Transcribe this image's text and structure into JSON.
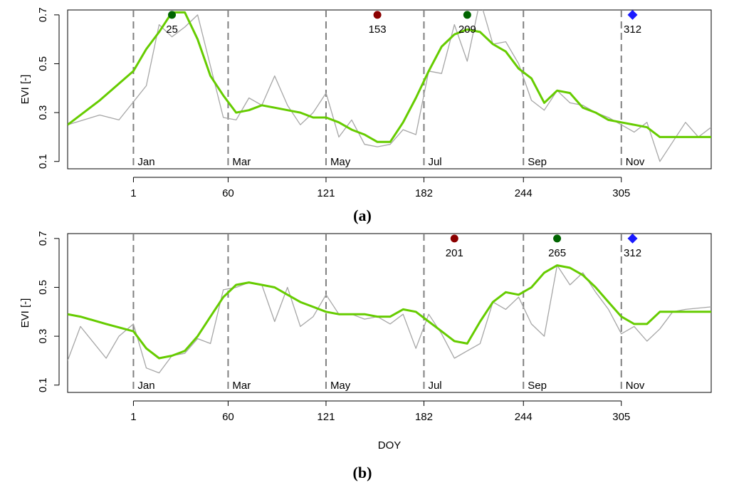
{
  "chart_data": [
    {
      "panel": "(a)",
      "type": "line",
      "xlabel": "",
      "ylabel": "EVI [-]",
      "xlim": [
        -40,
        361
      ],
      "ylim": [
        0.07,
        0.72
      ],
      "yticks": [
        "0.1",
        "0.3",
        "0.5",
        "0.7"
      ],
      "xticks": [
        "1",
        "60",
        "121",
        "182",
        "244",
        "305"
      ],
      "months": [
        {
          "doy": 1,
          "label": "Jan"
        },
        {
          "doy": 60,
          "label": "Mar"
        },
        {
          "doy": 121,
          "label": "May"
        },
        {
          "doy": 182,
          "label": "Jul"
        },
        {
          "doy": 244,
          "label": "Sep"
        },
        {
          "doy": 305,
          "label": "Nov"
        }
      ],
      "series": [
        {
          "color": "#a6a6a6",
          "x": [
            -40,
            -20,
            -8,
            9,
            17,
            25,
            33,
            41,
            57,
            65,
            73,
            81,
            89,
            97,
            105,
            113,
            121,
            129,
            137,
            145,
            153,
            161,
            169,
            177,
            185,
            193,
            201,
            209,
            217,
            225,
            233,
            241,
            249,
            257,
            265,
            273,
            281,
            289,
            297,
            305,
            313,
            321,
            329,
            337,
            345,
            353,
            361
          ],
          "y": [
            0.25,
            0.29,
            0.27,
            0.41,
            0.66,
            0.61,
            0.65,
            0.7,
            0.28,
            0.27,
            0.36,
            0.33,
            0.45,
            0.33,
            0.25,
            0.3,
            0.38,
            0.2,
            0.27,
            0.17,
            0.16,
            0.17,
            0.23,
            0.21,
            0.47,
            0.46,
            0.66,
            0.51,
            0.76,
            0.58,
            0.59,
            0.5,
            0.35,
            0.31,
            0.39,
            0.34,
            0.33,
            0.3,
            0.28,
            0.25,
            0.22,
            0.26,
            0.1,
            0.18,
            0.26,
            0.2,
            0.24
          ]
        },
        {
          "color": "#66cc00",
          "x": [
            -40,
            -20,
            1,
            9,
            17,
            25,
            33,
            41,
            49,
            57,
            65,
            73,
            81,
            89,
            97,
            105,
            113,
            121,
            129,
            137,
            145,
            153,
            161,
            169,
            177,
            185,
            193,
            201,
            209,
            217,
            225,
            233,
            241,
            249,
            257,
            265,
            273,
            281,
            289,
            297,
            305,
            313,
            321,
            329,
            337,
            345,
            361
          ],
          "y": [
            0.25,
            0.35,
            0.47,
            0.56,
            0.63,
            0.71,
            0.71,
            0.6,
            0.45,
            0.37,
            0.3,
            0.31,
            0.33,
            0.32,
            0.31,
            0.3,
            0.28,
            0.28,
            0.26,
            0.23,
            0.21,
            0.18,
            0.18,
            0.26,
            0.36,
            0.47,
            0.57,
            0.62,
            0.64,
            0.63,
            0.58,
            0.55,
            0.48,
            0.44,
            0.34,
            0.39,
            0.38,
            0.32,
            0.3,
            0.27,
            0.26,
            0.25,
            0.24,
            0.2,
            0.2,
            0.2,
            0.2
          ]
        }
      ],
      "markers": [
        {
          "doy": 25,
          "y": 0.7,
          "shape": "circle",
          "color": "#006400",
          "label": "25"
        },
        {
          "doy": 153,
          "y": 0.7,
          "shape": "circle",
          "color": "#8b0000",
          "label": "153"
        },
        {
          "doy": 209,
          "y": 0.7,
          "shape": "circle",
          "color": "#006400",
          "label": "209"
        },
        {
          "doy": 312,
          "y": 0.7,
          "shape": "diamond",
          "color": "#1a1aff",
          "label": "312"
        }
      ]
    },
    {
      "panel": "(b)",
      "type": "line",
      "xlabel": "DOY",
      "ylabel": "EVI [-]",
      "xlim": [
        -40,
        361
      ],
      "ylim": [
        0.07,
        0.72
      ],
      "yticks": [
        "0.1",
        "0.3",
        "0.5",
        "0.7"
      ],
      "xticks": [
        "1",
        "60",
        "121",
        "182",
        "244",
        "305"
      ],
      "months": [
        {
          "doy": 1,
          "label": "Jan"
        },
        {
          "doy": 60,
          "label": "Mar"
        },
        {
          "doy": 121,
          "label": "May"
        },
        {
          "doy": 182,
          "label": "Jul"
        },
        {
          "doy": 244,
          "label": "Sep"
        },
        {
          "doy": 305,
          "label": "Nov"
        }
      ],
      "series": [
        {
          "color": "#a6a6a6",
          "x": [
            -40,
            -32,
            -16,
            -8,
            1,
            9,
            17,
            25,
            33,
            41,
            49,
            57,
            65,
            73,
            81,
            89,
            97,
            105,
            113,
            121,
            129,
            137,
            145,
            153,
            161,
            169,
            177,
            185,
            193,
            201,
            209,
            217,
            225,
            233,
            241,
            249,
            257,
            265,
            273,
            281,
            289,
            297,
            305,
            313,
            321,
            329,
            337,
            345,
            361
          ],
          "y": [
            0.2,
            0.34,
            0.21,
            0.3,
            0.35,
            0.17,
            0.15,
            0.22,
            0.23,
            0.29,
            0.27,
            0.49,
            0.5,
            0.52,
            0.51,
            0.36,
            0.5,
            0.34,
            0.38,
            0.47,
            0.39,
            0.39,
            0.37,
            0.38,
            0.35,
            0.39,
            0.25,
            0.39,
            0.31,
            0.21,
            0.24,
            0.27,
            0.44,
            0.41,
            0.46,
            0.35,
            0.3,
            0.59,
            0.51,
            0.56,
            0.48,
            0.41,
            0.31,
            0.34,
            0.28,
            0.33,
            0.4,
            0.41,
            0.42
          ]
        },
        {
          "color": "#66cc00",
          "x": [
            -40,
            -32,
            -16,
            1,
            9,
            17,
            25,
            33,
            41,
            49,
            57,
            65,
            73,
            81,
            89,
            97,
            105,
            113,
            121,
            129,
            137,
            145,
            153,
            161,
            169,
            177,
            185,
            193,
            201,
            209,
            217,
            225,
            233,
            241,
            249,
            257,
            265,
            273,
            281,
            289,
            297,
            305,
            313,
            321,
            329,
            337,
            345,
            361
          ],
          "y": [
            0.39,
            0.38,
            0.35,
            0.32,
            0.25,
            0.21,
            0.22,
            0.24,
            0.3,
            0.38,
            0.46,
            0.51,
            0.52,
            0.51,
            0.5,
            0.47,
            0.44,
            0.42,
            0.4,
            0.39,
            0.39,
            0.39,
            0.38,
            0.38,
            0.41,
            0.4,
            0.36,
            0.32,
            0.28,
            0.27,
            0.36,
            0.44,
            0.48,
            0.47,
            0.5,
            0.56,
            0.59,
            0.58,
            0.55,
            0.5,
            0.44,
            0.38,
            0.35,
            0.35,
            0.4,
            0.4,
            0.4,
            0.4
          ]
        }
      ],
      "markers": [
        {
          "doy": 201,
          "y": 0.7,
          "shape": "circle",
          "color": "#8b0000",
          "label": "201"
        },
        {
          "doy": 265,
          "y": 0.7,
          "shape": "circle",
          "color": "#006400",
          "label": "265"
        },
        {
          "doy": 312,
          "y": 0.7,
          "shape": "diamond",
          "color": "#1a1aff",
          "label": "312"
        }
      ]
    }
  ]
}
